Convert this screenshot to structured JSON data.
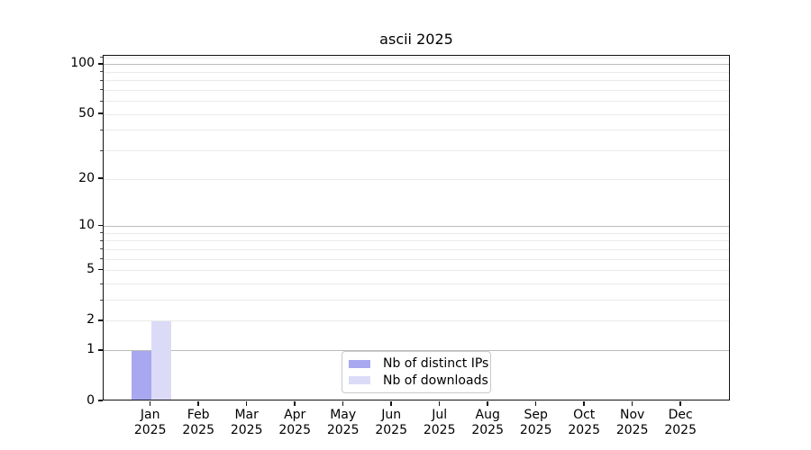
{
  "chart_data": {
    "type": "bar",
    "title": "ascii 2025",
    "categories": [
      {
        "month": "Jan",
        "year": "2025"
      },
      {
        "month": "Feb",
        "year": "2025"
      },
      {
        "month": "Mar",
        "year": "2025"
      },
      {
        "month": "Apr",
        "year": "2025"
      },
      {
        "month": "May",
        "year": "2025"
      },
      {
        "month": "Jun",
        "year": "2025"
      },
      {
        "month": "Jul",
        "year": "2025"
      },
      {
        "month": "Aug",
        "year": "2025"
      },
      {
        "month": "Sep",
        "year": "2025"
      },
      {
        "month": "Oct",
        "year": "2025"
      },
      {
        "month": "Nov",
        "year": "2025"
      },
      {
        "month": "Dec",
        "year": "2025"
      }
    ],
    "series": [
      {
        "name": "Nb of distinct IPs",
        "color": "#a8a8f0",
        "values": [
          1,
          0,
          0,
          0,
          0,
          0,
          0,
          0,
          0,
          0,
          0,
          0
        ]
      },
      {
        "name": "Nb of downloads",
        "color": "#dbdbf8",
        "values": [
          2,
          0,
          0,
          0,
          0,
          0,
          0,
          0,
          0,
          0,
          0,
          0
        ]
      }
    ],
    "y_axis": {
      "scale": "log1p",
      "tick_labels": [
        "0",
        "1",
        "2",
        "5",
        "10",
        "20",
        "50",
        "100"
      ],
      "ticks_major": [
        0,
        1,
        2,
        5,
        10,
        20,
        50,
        100
      ],
      "ticks_minor": [
        3,
        4,
        6,
        7,
        8,
        9,
        30,
        40,
        60,
        70,
        80,
        90,
        110
      ],
      "ylim": [
        0,
        113
      ]
    },
    "grid": {
      "major_values": [
        1,
        10,
        100
      ],
      "minor_values": [
        2,
        3,
        4,
        5,
        6,
        7,
        8,
        9,
        20,
        30,
        40,
        50,
        60,
        70,
        80,
        90,
        110
      ],
      "major_color": "#bcbcbc",
      "minor_color": "#eaeaea"
    },
    "legend": {
      "position": "lower-center",
      "entries": [
        "Nb of distinct IPs",
        "Nb of downloads"
      ]
    },
    "colors": {
      "spine": "#111111",
      "text": "#000000",
      "background": "#ffffff"
    }
  }
}
